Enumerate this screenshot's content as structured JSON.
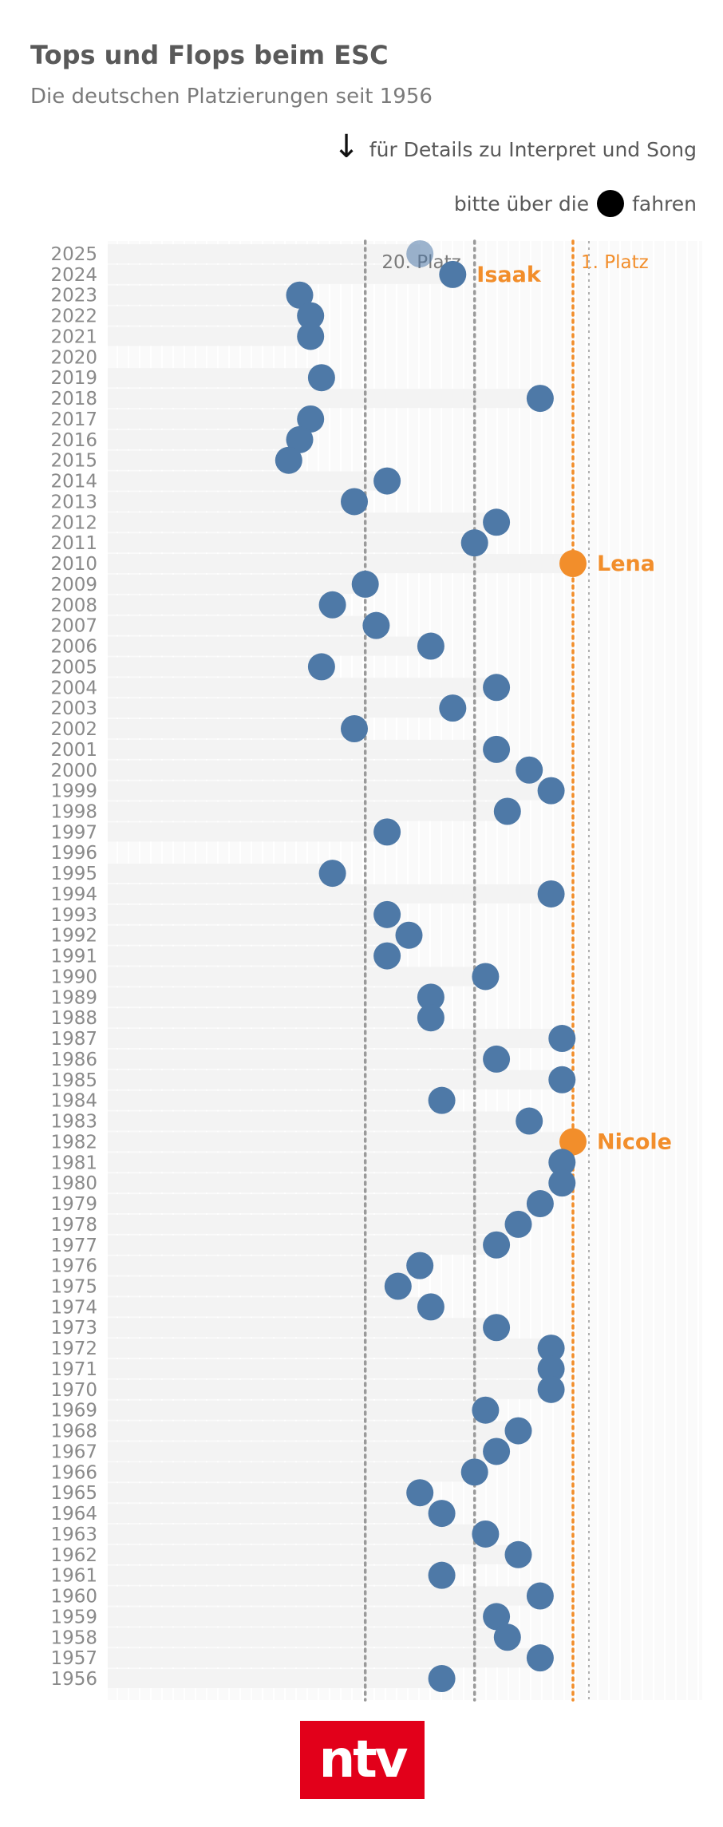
{
  "header": {
    "title": "Tops und Flops beim ESC",
    "subtitle": "Die deutschen Platzierungen seit 1956",
    "hint_line1": "für Details zu Interpret und Song",
    "hint_line2_before": "bitte über die",
    "hint_line2_after": "fahren",
    "arrow_icon": "down-arrow-icon",
    "dot_icon": "black-dot-icon"
  },
  "logo": {
    "text": "ntv",
    "color": "#e2001a"
  },
  "colors": {
    "dot": "#4e79a7",
    "highlight": "#f28e2b",
    "band": "#f2f2f2",
    "label": "#8a8a8a"
  },
  "chart_data": {
    "type": "scatter",
    "y_axis": "year",
    "x_axis": "rank (place)",
    "rank_range": [
      30,
      1
    ],
    "reference_lines": [
      {
        "rank": 20,
        "label": "20. Platz"
      },
      {
        "rank": 10,
        "label": ""
      },
      {
        "rank": 1,
        "label": "1. Platz"
      }
    ],
    "points": [
      {
        "year": 2025,
        "rank": 15
      },
      {
        "year": 2024,
        "rank": 12,
        "label": "Isaak"
      },
      {
        "year": 2023,
        "rank": 26
      },
      {
        "year": 2022,
        "rank": 25
      },
      {
        "year": 2021,
        "rank": 25
      },
      {
        "year": 2020,
        "rank": null
      },
      {
        "year": 2019,
        "rank": 24
      },
      {
        "year": 2018,
        "rank": 4
      },
      {
        "year": 2017,
        "rank": 25
      },
      {
        "year": 2016,
        "rank": 26
      },
      {
        "year": 2015,
        "rank": 27
      },
      {
        "year": 2014,
        "rank": 18
      },
      {
        "year": 2013,
        "rank": 21
      },
      {
        "year": 2012,
        "rank": 8
      },
      {
        "year": 2011,
        "rank": 10
      },
      {
        "year": 2010,
        "rank": 1,
        "label": "Lena"
      },
      {
        "year": 2009,
        "rank": 20
      },
      {
        "year": 2008,
        "rank": 23
      },
      {
        "year": 2007,
        "rank": 19
      },
      {
        "year": 2006,
        "rank": 14
      },
      {
        "year": 2005,
        "rank": 24
      },
      {
        "year": 2004,
        "rank": 8
      },
      {
        "year": 2003,
        "rank": 12
      },
      {
        "year": 2002,
        "rank": 21
      },
      {
        "year": 2001,
        "rank": 8
      },
      {
        "year": 2000,
        "rank": 5
      },
      {
        "year": 1999,
        "rank": 3
      },
      {
        "year": 1998,
        "rank": 7
      },
      {
        "year": 1997,
        "rank": 18
      },
      {
        "year": 1996,
        "rank": null
      },
      {
        "year": 1995,
        "rank": 23
      },
      {
        "year": 1994,
        "rank": 3
      },
      {
        "year": 1993,
        "rank": 18
      },
      {
        "year": 1992,
        "rank": 16
      },
      {
        "year": 1991,
        "rank": 18
      },
      {
        "year": 1990,
        "rank": 9
      },
      {
        "year": 1989,
        "rank": 14
      },
      {
        "year": 1988,
        "rank": 14
      },
      {
        "year": 1987,
        "rank": 2
      },
      {
        "year": 1986,
        "rank": 8
      },
      {
        "year": 1985,
        "rank": 2
      },
      {
        "year": 1984,
        "rank": 13
      },
      {
        "year": 1983,
        "rank": 5
      },
      {
        "year": 1982,
        "rank": 1,
        "label": "Nicole"
      },
      {
        "year": 1981,
        "rank": 2
      },
      {
        "year": 1980,
        "rank": 2
      },
      {
        "year": 1979,
        "rank": 4
      },
      {
        "year": 1978,
        "rank": 6
      },
      {
        "year": 1977,
        "rank": 8
      },
      {
        "year": 1976,
        "rank": 15
      },
      {
        "year": 1975,
        "rank": 17
      },
      {
        "year": 1974,
        "rank": 14
      },
      {
        "year": 1973,
        "rank": 8
      },
      {
        "year": 1972,
        "rank": 3
      },
      {
        "year": 1971,
        "rank": 3
      },
      {
        "year": 1970,
        "rank": 3
      },
      {
        "year": 1969,
        "rank": 9
      },
      {
        "year": 1968,
        "rank": 6
      },
      {
        "year": 1967,
        "rank": 8
      },
      {
        "year": 1966,
        "rank": 10
      },
      {
        "year": 1965,
        "rank": 15
      },
      {
        "year": 1964,
        "rank": 13
      },
      {
        "year": 1963,
        "rank": 9
      },
      {
        "year": 1962,
        "rank": 6
      },
      {
        "year": 1961,
        "rank": 13
      },
      {
        "year": 1960,
        "rank": 4
      },
      {
        "year": 1959,
        "rank": 8
      },
      {
        "year": 1958,
        "rank": 7
      },
      {
        "year": 1957,
        "rank": 4
      },
      {
        "year": 1956,
        "rank": 13
      }
    ]
  }
}
